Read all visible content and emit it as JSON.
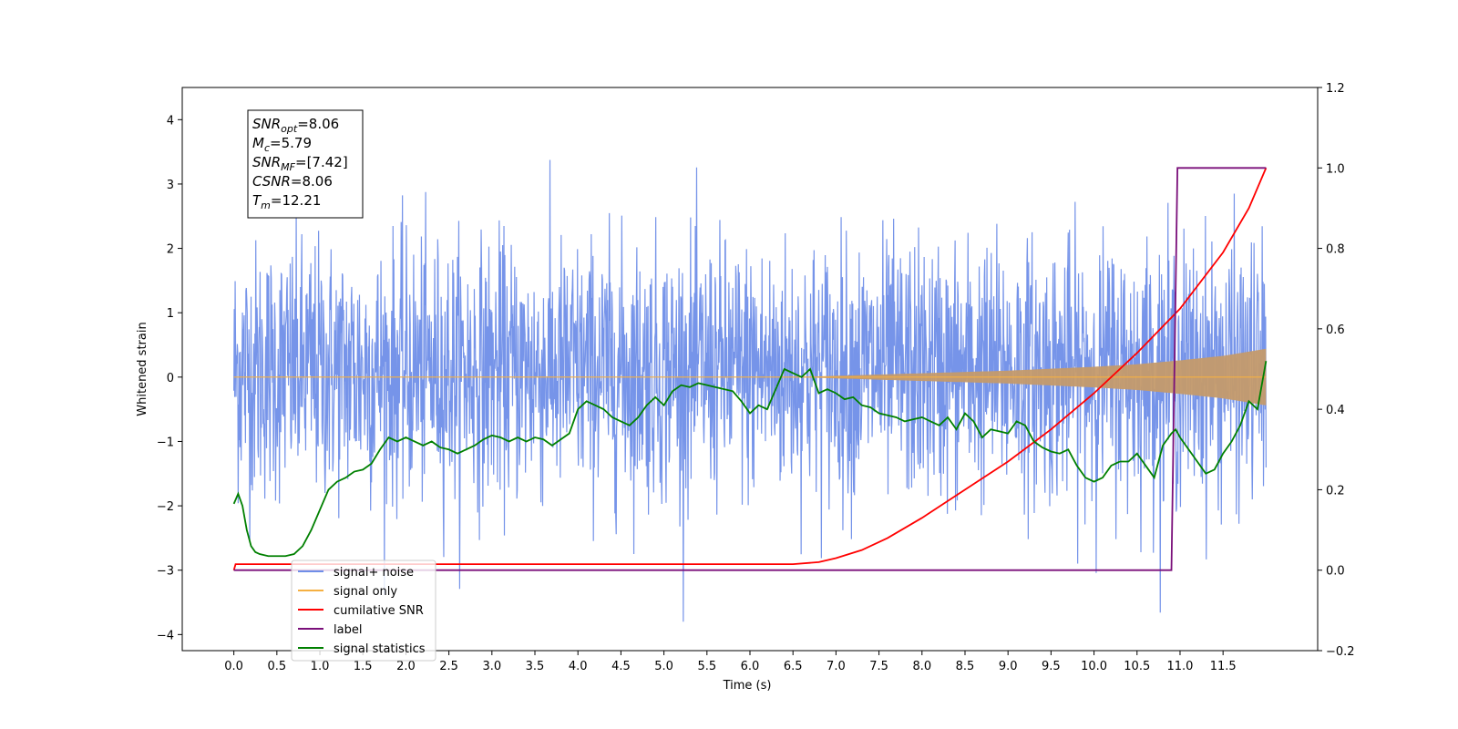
{
  "chart_data": {
    "type": "line",
    "xlabel": "Time (s)",
    "ylabel_left": "Whitened strain",
    "ylabel_right": "",
    "xlim": [
      -0.6,
      12.6
    ],
    "ylim_left": [
      -4.25,
      4.5
    ],
    "ylim_right": [
      -0.2,
      1.2
    ],
    "x_ticks": [
      0.0,
      0.5,
      1.0,
      1.5,
      2.0,
      2.5,
      3.0,
      3.5,
      4.0,
      4.5,
      5.0,
      5.5,
      6.0,
      6.5,
      7.0,
      7.5,
      8.0,
      8.5,
      9.0,
      9.5,
      10.0,
      10.5,
      11.0,
      11.5
    ],
    "x_tick_labels": [
      "0.0",
      "0.5",
      "1.0",
      "1.5",
      "2.0",
      "2.5",
      "3.0",
      "3.5",
      "4.0",
      "4.5",
      "5.0",
      "5.5",
      "6.0",
      "6.5",
      "7.0",
      "7.5",
      "8.0",
      "8.5",
      "9.0",
      "9.5",
      "10.0",
      "10.5",
      "11.0",
      "11.5"
    ],
    "y_left_ticks": [
      -4,
      -3,
      -2,
      -1,
      0,
      1,
      2,
      3,
      4
    ],
    "y_left_tick_labels": [
      "−4",
      "−3",
      "−2",
      "−1",
      "0",
      "1",
      "2",
      "3",
      "4"
    ],
    "y_right_ticks": [
      -0.2,
      0.0,
      0.2,
      0.4,
      0.6,
      0.8,
      1.0,
      1.2
    ],
    "y_right_tick_labels": [
      "−0.2",
      "0.0",
      "0.2",
      "0.4",
      "0.6",
      "0.8",
      "1.0",
      "1.2"
    ],
    "grid": false,
    "legend_position": "lower-left",
    "annotation": {
      "lines": [
        {
          "main": "SNR",
          "sub": "opt",
          "value": "=8.06"
        },
        {
          "main": "M",
          "sub": "c",
          "value": "=5.79"
        },
        {
          "main": "SNR",
          "sub": "MF",
          "value": "=[7.42]"
        },
        {
          "main": "CSNR",
          "sub": "",
          "value": "=8.06"
        },
        {
          "main": "T",
          "sub": "m",
          "value": "=12.21"
        }
      ]
    },
    "series": [
      {
        "name": "signal+ noise",
        "axis": "left",
        "color": "#6f8ee8",
        "description": "whitened noisy data, approx. gaussian with sigma ~1 and mean ~0.1, span t=0 to 12.0",
        "x_range": [
          0.0,
          12.0
        ],
        "approx_envelope": [
          -3.8,
          3.7
        ]
      },
      {
        "name": "signal only",
        "axis": "left",
        "color": "#f5b042",
        "x_range": [
          0.0,
          12.0
        ],
        "envelope_points": {
          "x": [
            0.0,
            6.5,
            7.0,
            7.5,
            8.0,
            8.5,
            9.0,
            9.5,
            10.0,
            10.5,
            11.0,
            11.5,
            12.0
          ],
          "amplitude": [
            0.0,
            0.0,
            0.02,
            0.04,
            0.06,
            0.08,
            0.1,
            0.13,
            0.16,
            0.2,
            0.26,
            0.33,
            0.44
          ]
        }
      },
      {
        "name": "cumilative SNR",
        "axis": "right",
        "color": "#ff0000",
        "x": [
          0.0,
          0.02,
          6.5,
          6.8,
          7.0,
          7.3,
          7.6,
          8.0,
          8.5,
          9.0,
          9.5,
          10.0,
          10.5,
          11.0,
          11.5,
          11.8,
          12.0
        ],
        "values": [
          0.0,
          0.015,
          0.015,
          0.02,
          0.03,
          0.05,
          0.08,
          0.13,
          0.2,
          0.27,
          0.35,
          0.44,
          0.54,
          0.65,
          0.79,
          0.9,
          1.0
        ]
      },
      {
        "name": "label",
        "axis": "right",
        "color": "#7a0f7a",
        "x": [
          0.0,
          10.9,
          10.97,
          12.0
        ],
        "values": [
          0.0,
          0.0,
          1.0,
          1.0
        ]
      },
      {
        "name": "signal statistics",
        "axis": "right",
        "color": "#008000",
        "x": [
          0.0,
          0.05,
          0.1,
          0.15,
          0.2,
          0.25,
          0.3,
          0.4,
          0.5,
          0.6,
          0.7,
          0.8,
          0.9,
          1.0,
          1.1,
          1.2,
          1.3,
          1.4,
          1.5,
          1.6,
          1.7,
          1.8,
          1.9,
          2.0,
          2.1,
          2.2,
          2.3,
          2.4,
          2.5,
          2.6,
          2.7,
          2.8,
          2.9,
          3.0,
          3.1,
          3.2,
          3.3,
          3.4,
          3.5,
          3.6,
          3.7,
          3.8,
          3.9,
          4.0,
          4.1,
          4.2,
          4.3,
          4.4,
          4.5,
          4.6,
          4.7,
          4.8,
          4.9,
          5.0,
          5.1,
          5.2,
          5.3,
          5.4,
          5.5,
          5.6,
          5.7,
          5.8,
          5.9,
          6.0,
          6.1,
          6.2,
          6.3,
          6.4,
          6.5,
          6.6,
          6.7,
          6.8,
          6.9,
          7.0,
          7.1,
          7.2,
          7.3,
          7.4,
          7.5,
          7.6,
          7.7,
          7.8,
          7.9,
          8.0,
          8.1,
          8.2,
          8.3,
          8.4,
          8.5,
          8.6,
          8.7,
          8.8,
          8.9,
          9.0,
          9.1,
          9.2,
          9.3,
          9.4,
          9.5,
          9.6,
          9.7,
          9.8,
          9.9,
          10.0,
          10.1,
          10.2,
          10.3,
          10.4,
          10.5,
          10.6,
          10.7,
          10.8,
          10.9,
          10.95,
          11.0,
          11.1,
          11.2,
          11.3,
          11.4,
          11.5,
          11.6,
          11.7,
          11.8,
          11.9,
          12.0
        ],
        "values": [
          0.165,
          0.19,
          0.16,
          0.1,
          0.06,
          0.045,
          0.04,
          0.035,
          0.035,
          0.035,
          0.04,
          0.06,
          0.1,
          0.15,
          0.2,
          0.22,
          0.23,
          0.245,
          0.25,
          0.265,
          0.3,
          0.33,
          0.32,
          0.33,
          0.32,
          0.31,
          0.32,
          0.305,
          0.3,
          0.29,
          0.3,
          0.31,
          0.325,
          0.335,
          0.33,
          0.32,
          0.33,
          0.32,
          0.33,
          0.325,
          0.31,
          0.325,
          0.34,
          0.4,
          0.42,
          0.41,
          0.4,
          0.38,
          0.37,
          0.36,
          0.38,
          0.41,
          0.43,
          0.41,
          0.445,
          0.46,
          0.455,
          0.465,
          0.46,
          0.455,
          0.45,
          0.445,
          0.42,
          0.39,
          0.41,
          0.4,
          0.45,
          0.5,
          0.49,
          0.48,
          0.5,
          0.44,
          0.45,
          0.44,
          0.425,
          0.43,
          0.41,
          0.405,
          0.39,
          0.385,
          0.38,
          0.37,
          0.375,
          0.38,
          0.37,
          0.36,
          0.38,
          0.35,
          0.39,
          0.37,
          0.33,
          0.35,
          0.345,
          0.34,
          0.37,
          0.36,
          0.32,
          0.305,
          0.295,
          0.29,
          0.3,
          0.26,
          0.23,
          0.22,
          0.23,
          0.26,
          0.27,
          0.27,
          0.29,
          0.26,
          0.23,
          0.31,
          0.34,
          0.35,
          0.33,
          0.3,
          0.27,
          0.24,
          0.25,
          0.29,
          0.32,
          0.36,
          0.42,
          0.4,
          0.52
        ]
      }
    ]
  }
}
